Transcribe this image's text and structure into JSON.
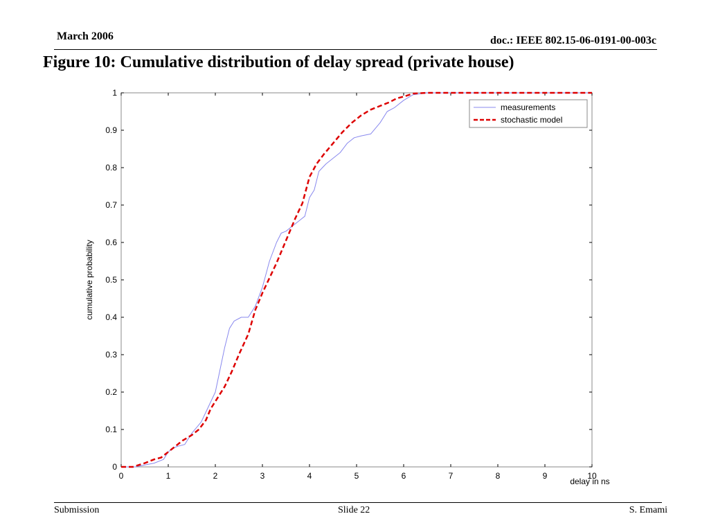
{
  "header": {
    "date": "March 2006",
    "doc_id": "doc.: IEEE 802.15-06-0191-00-003c"
  },
  "figure": {
    "title": "Figure 10: Cumulative distribution of delay spread (private house)"
  },
  "footer": {
    "left": "Submission",
    "center": "Slide 22",
    "right": "S. Emami"
  },
  "chart_data": {
    "type": "line",
    "title": "",
    "xlabel": "delay in ns",
    "ylabel": "cumulative probability",
    "xlim": [
      0,
      10
    ],
    "ylim": [
      0,
      1
    ],
    "x_ticks": [
      "0",
      "1",
      "2",
      "3",
      "4",
      "5",
      "6",
      "7",
      "8",
      "9",
      "10"
    ],
    "y_ticks": [
      "0",
      "0.1",
      "0.2",
      "0.3",
      "0.4",
      "0.5",
      "0.6",
      "0.7",
      "0.8",
      "0.9",
      "1"
    ],
    "grid": false,
    "legend_position": "top-right",
    "series": [
      {
        "name": "measurements",
        "color": "#8888ee",
        "dash": "solid",
        "x": [
          0,
          0.3,
          0.5,
          0.7,
          0.9,
          1.0,
          1.1,
          1.2,
          1.35,
          1.5,
          1.7,
          1.85,
          2.0,
          2.1,
          2.2,
          2.3,
          2.4,
          2.55,
          2.7,
          2.85,
          3.0,
          3.15,
          3.3,
          3.4,
          3.5,
          3.6,
          3.7,
          3.8,
          3.9,
          4.0,
          4.1,
          4.2,
          4.35,
          4.5,
          4.65,
          4.8,
          4.95,
          5.1,
          5.3,
          5.5,
          5.65,
          5.8,
          6.0,
          6.2,
          6.5,
          7,
          8,
          9,
          10
        ],
        "y": [
          0,
          0,
          0.005,
          0.01,
          0.02,
          0.04,
          0.05,
          0.055,
          0.06,
          0.09,
          0.12,
          0.16,
          0.2,
          0.26,
          0.32,
          0.37,
          0.39,
          0.4,
          0.4,
          0.43,
          0.48,
          0.55,
          0.6,
          0.625,
          0.63,
          0.64,
          0.65,
          0.66,
          0.67,
          0.72,
          0.74,
          0.79,
          0.81,
          0.825,
          0.84,
          0.865,
          0.88,
          0.885,
          0.89,
          0.92,
          0.95,
          0.96,
          0.98,
          0.995,
          1.0,
          1.0,
          1.0,
          1.0,
          1.0
        ]
      },
      {
        "name": "stochastic model",
        "color": "#dd0000",
        "dash": "dashed",
        "x": [
          0,
          0.25,
          0.5,
          0.7,
          0.85,
          1.0,
          1.15,
          1.3,
          1.5,
          1.65,
          1.8,
          1.9,
          2.0,
          2.2,
          2.35,
          2.5,
          2.7,
          2.85,
          3.0,
          3.15,
          3.3,
          3.5,
          3.7,
          3.85,
          4.0,
          4.15,
          4.3,
          4.5,
          4.7,
          4.9,
          5.1,
          5.3,
          5.5,
          5.7,
          5.85,
          6.0,
          6.2,
          6.5,
          7,
          8,
          9,
          10
        ],
        "y": [
          0,
          0,
          0.01,
          0.02,
          0.025,
          0.04,
          0.055,
          0.07,
          0.085,
          0.1,
          0.125,
          0.155,
          0.175,
          0.215,
          0.255,
          0.3,
          0.355,
          0.42,
          0.465,
          0.505,
          0.545,
          0.605,
          0.665,
          0.705,
          0.775,
          0.81,
          0.835,
          0.865,
          0.895,
          0.92,
          0.94,
          0.955,
          0.965,
          0.975,
          0.985,
          0.99,
          0.998,
          1.0,
          1.0,
          1.0,
          1.0,
          1.0
        ]
      }
    ]
  }
}
